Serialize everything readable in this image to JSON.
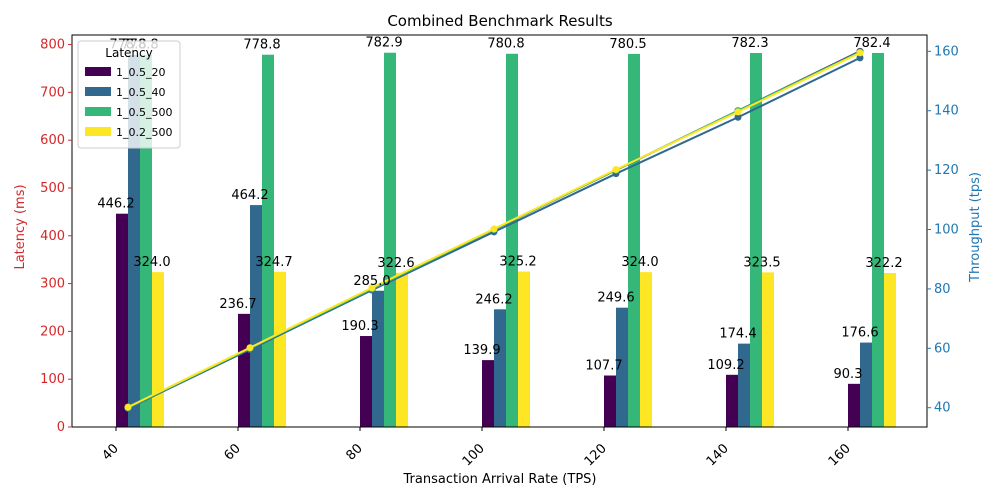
{
  "chart_data": {
    "type": "bar",
    "title": "Combined Benchmark Results",
    "xlabel": "Transaction Arrival Rate (TPS)",
    "ylabel": "Latency (ms)",
    "y2label": "Throughput (tps)",
    "categories": [
      "40",
      "60",
      "80",
      "100",
      "120",
      "140",
      "160"
    ],
    "ylim": [
      0,
      820
    ],
    "y_ticks": [
      0,
      100,
      200,
      300,
      400,
      500,
      600,
      700,
      800
    ],
    "y2lim": [
      33.5,
      165.5
    ],
    "y2_ticks": [
      40,
      60,
      80,
      100,
      120,
      140,
      160
    ],
    "grid": false,
    "legend": {
      "title": "Latency",
      "placement": "top-left"
    },
    "series": [
      {
        "name": "1_0.5_20",
        "color": "#440154",
        "values": [
          446.2,
          236.7,
          190.3,
          139.9,
          107.7,
          109.2,
          90.3
        ]
      },
      {
        "name": "1_0.5_40",
        "color": "#31688e",
        "values": [
          778.8,
          464.2,
          285.0,
          246.2,
          249.6,
          174.4,
          176.6
        ]
      },
      {
        "name": "1_0.5_500",
        "color": "#35b779",
        "values": [
          778.8,
          778.8,
          782.9,
          780.8,
          780.5,
          782.3,
          782.4
        ]
      },
      {
        "name": "1_0.2_500",
        "color": "#fde725",
        "values": [
          324.0,
          324.7,
          322.6,
          325.2,
          324.0,
          323.5,
          322.2
        ]
      }
    ],
    "bar_labels": [
      [
        "446.2",
        "236.7",
        "190.3",
        "139.9",
        "107.7",
        "109.2",
        "90.3"
      ],
      [
        "778.8",
        "464.2",
        "285.0",
        "246.2",
        "249.6",
        "174.4",
        "176.6"
      ],
      [
        "778.8",
        "778.8",
        "782.9",
        "780.8",
        "780.5",
        "782.3",
        "782.4"
      ],
      [
        "324.0",
        "324.7",
        "322.6",
        "325.2",
        "324.0",
        "323.5",
        "322.2"
      ]
    ],
    "throughput_lines": [
      {
        "color": "#440154",
        "values": [
          40,
          60,
          80,
          100,
          120,
          140,
          160
        ]
      },
      {
        "color": "#31688e",
        "values": [
          39.8,
          59.6,
          79.6,
          99.2,
          118.8,
          137.8,
          157.8
        ]
      },
      {
        "color": "#35b779",
        "values": [
          40.0,
          60.0,
          80.0,
          100.0,
          120.0,
          140.0,
          159.8
        ]
      },
      {
        "color": "#fde725",
        "values": [
          40.2,
          60.2,
          80.4,
          100.2,
          120.2,
          139.6,
          159.5
        ]
      }
    ],
    "left_axis_color": "#d62728",
    "right_axis_color": "#1f77b4"
  }
}
